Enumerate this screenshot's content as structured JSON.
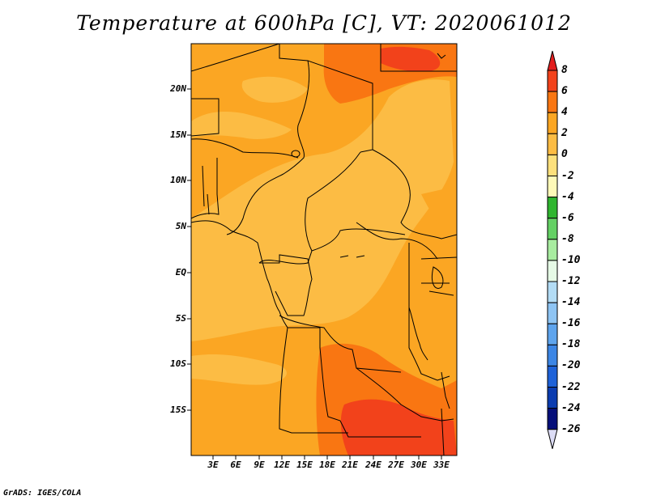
{
  "title": "Temperature at 600hPa [C], VT: 2020061012",
  "credit": "GrADS: IGES/COLA",
  "map": {
    "lat_labels": [
      "20N",
      "15N",
      "10N",
      "5N",
      "EQ",
      "5S",
      "10S",
      "15S"
    ],
    "lon_labels": [
      "3E",
      "6E",
      "9E",
      "12E",
      "15E",
      "18E",
      "21E",
      "24E",
      "27E",
      "30E",
      "33E"
    ],
    "field_colors": {
      "t0_2": "#fcbc44",
      "t2_4": "#fba623",
      "t4_6": "#f97612",
      "t6_8": "#f2421b"
    }
  },
  "colorbar": {
    "labels": [
      "8",
      "6",
      "4",
      "2",
      "0",
      "-2",
      "-4",
      "-6",
      "-8",
      "-10",
      "-12",
      "-14",
      "-16",
      "-18",
      "-20",
      "-22",
      "-24",
      "-26"
    ],
    "colors": [
      "#e31e1e",
      "#f2421b",
      "#f97612",
      "#fba623",
      "#fcbc44",
      "#fde07c",
      "#fef9b8",
      "#2fb52f",
      "#64d064",
      "#a8eca0",
      "#e6fae6",
      "#b3dcf5",
      "#8ec4f3",
      "#5ea4ed",
      "#3c86e5",
      "#1e62d8",
      "#0b3cb0",
      "#050f7a",
      "#dcdcf5"
    ]
  }
}
